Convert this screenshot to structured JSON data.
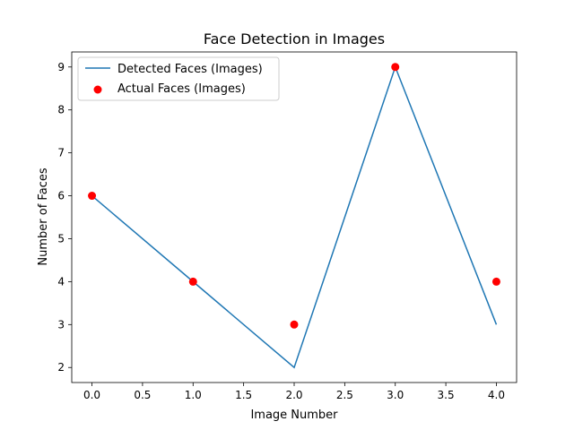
{
  "chart_data": {
    "type": "line",
    "title": "Face Detection in Images",
    "xlabel": "Image Number",
    "ylabel": "Number of Faces",
    "xlim": [
      -0.2,
      4.2
    ],
    "ylim": [
      1.65,
      9.35
    ],
    "xticks": [
      0.0,
      0.5,
      1.0,
      1.5,
      2.0,
      2.5,
      3.0,
      3.5,
      4.0
    ],
    "xtick_labels": [
      "0.0",
      "0.5",
      "1.0",
      "1.5",
      "2.0",
      "2.5",
      "3.0",
      "3.5",
      "4.0"
    ],
    "yticks": [
      2,
      3,
      4,
      5,
      6,
      7,
      8,
      9
    ],
    "ytick_labels": [
      "2",
      "3",
      "4",
      "5",
      "6",
      "7",
      "8",
      "9"
    ],
    "grid": false,
    "legend_position": "top-left",
    "series": [
      {
        "name": "Detected Faces (Images)",
        "kind": "line",
        "color": "#1f77b4",
        "x": [
          0,
          1,
          2,
          3,
          4
        ],
        "y": [
          6,
          4,
          2,
          9,
          3
        ]
      },
      {
        "name": "Actual Faces (Images)",
        "kind": "scatter",
        "color": "#ff0000",
        "x": [
          0,
          1,
          2,
          3,
          4
        ],
        "y": [
          6,
          4,
          3,
          9,
          4
        ]
      }
    ]
  }
}
